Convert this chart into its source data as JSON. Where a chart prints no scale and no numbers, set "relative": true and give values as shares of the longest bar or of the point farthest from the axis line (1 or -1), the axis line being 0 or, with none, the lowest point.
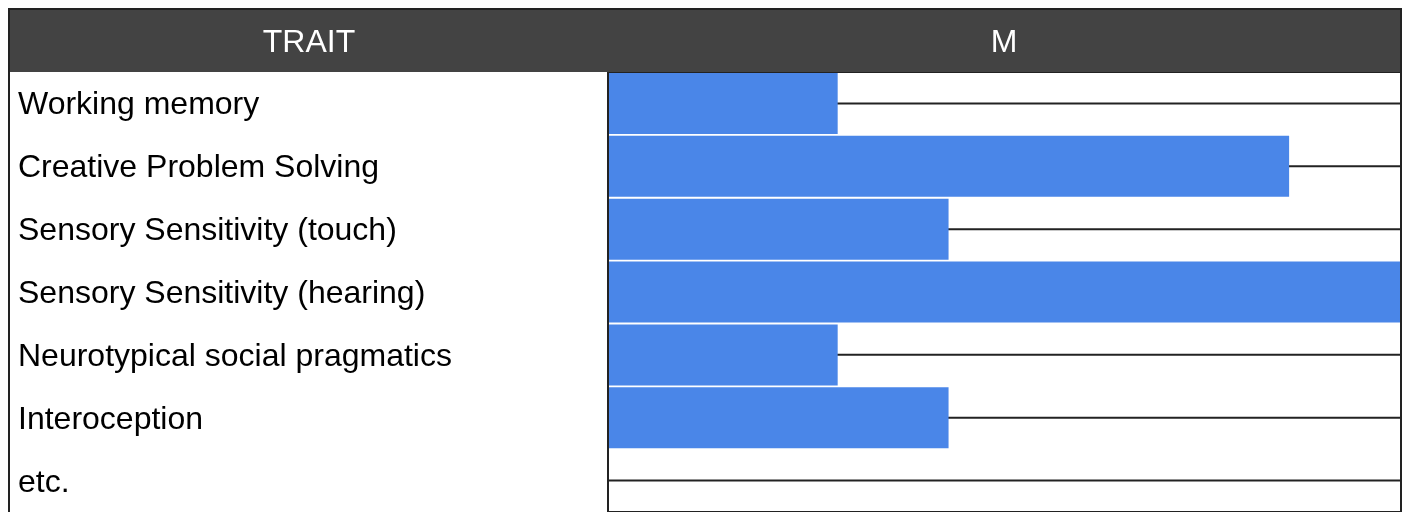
{
  "chart_data": {
    "type": "bar",
    "orientation": "horizontal",
    "relative": true,
    "ylabel": "TRAIT",
    "xlabel": "M",
    "categories": [
      "Working memory",
      "Creative Problem Solving",
      "Sensory Sensitivity (touch)",
      "Sensory Sensitivity (hearing)",
      "Neurotypical social pragmatics",
      "Interoception",
      "etc."
    ],
    "values": [
      0.29,
      0.86,
      0.43,
      1,
      0.29,
      0.43,
      0
    ],
    "color": "#4a86e8",
    "grid": true
  }
}
